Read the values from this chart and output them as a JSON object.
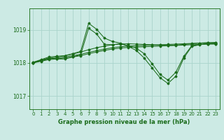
{
  "bg_color": "#cceae4",
  "grid_color": "#aad4cc",
  "line_color": "#1a6b1a",
  "title": "Graphe pression niveau de la mer (hPa)",
  "ylim": [
    1016.6,
    1019.65
  ],
  "yticks": [
    1017,
    1018,
    1019
  ],
  "xlim": [
    -0.5,
    23.5
  ],
  "xticks": [
    0,
    1,
    2,
    3,
    4,
    5,
    6,
    7,
    8,
    9,
    10,
    11,
    12,
    13,
    14,
    15,
    16,
    17,
    18,
    19,
    20,
    21,
    22,
    23
  ],
  "series": [
    {
      "x": [
        0,
        1,
        2,
        3,
        4,
        5,
        6,
        7,
        8,
        9,
        10,
        11,
        12,
        13,
        14,
        15,
        16,
        17,
        18,
        19,
        20,
        21,
        22,
        23
      ],
      "y": [
        1018.0,
        1018.05,
        1018.1,
        1018.12,
        1018.15,
        1018.18,
        1018.22,
        1018.28,
        1018.33,
        1018.38,
        1018.42,
        1018.45,
        1018.47,
        1018.48,
        1018.49,
        1018.5,
        1018.51,
        1018.52,
        1018.53,
        1018.54,
        1018.55,
        1018.56,
        1018.57,
        1018.57
      ]
    },
    {
      "x": [
        0,
        1,
        2,
        3,
        4,
        5,
        6,
        7,
        8,
        9,
        10,
        11,
        12,
        13,
        14,
        15,
        16,
        17,
        18,
        19,
        20,
        21,
        22,
        23
      ],
      "y": [
        1018.02,
        1018.07,
        1018.12,
        1018.15,
        1018.18,
        1018.22,
        1018.26,
        1018.32,
        1018.37,
        1018.42,
        1018.46,
        1018.49,
        1018.51,
        1018.52,
        1018.53,
        1018.54,
        1018.55,
        1018.56,
        1018.57,
        1018.58,
        1018.59,
        1018.6,
        1018.61,
        1018.61
      ]
    },
    {
      "x": [
        0,
        1,
        2,
        3,
        4,
        5,
        6,
        7,
        8,
        9,
        10,
        11,
        12,
        13,
        14,
        15,
        16,
        17,
        18,
        19,
        20,
        21,
        22,
        23
      ],
      "y": [
        1018.0,
        1018.08,
        1018.14,
        1018.18,
        1018.22,
        1018.27,
        1018.33,
        1018.4,
        1018.46,
        1018.51,
        1018.55,
        1018.57,
        1018.58,
        1018.57,
        1018.56,
        1018.55,
        1018.54,
        1018.53,
        1018.54,
        1018.56,
        1018.58,
        1018.6,
        1018.61,
        1018.62
      ]
    },
    {
      "x": [
        0,
        1,
        2,
        3,
        4,
        5,
        6,
        7,
        8,
        9,
        10,
        11,
        12,
        13,
        14,
        15,
        16,
        17,
        18,
        19,
        20,
        21,
        22,
        23
      ],
      "y": [
        1018.02,
        1018.1,
        1018.18,
        1018.2,
        1018.22,
        1018.28,
        1018.35,
        1019.2,
        1019.02,
        1018.75,
        1018.65,
        1018.6,
        1018.5,
        1018.38,
        1018.15,
        1017.85,
        1017.55,
        1017.38,
        1017.6,
        1018.15,
        1018.5,
        1018.55,
        1018.58,
        1018.6
      ]
    },
    {
      "x": [
        0,
        1,
        2,
        3,
        4,
        5,
        6,
        7,
        8,
        9,
        10,
        11,
        12,
        13,
        14,
        15,
        16,
        17,
        18,
        19,
        20,
        21,
        22,
        23
      ],
      "y": [
        1018.0,
        1018.08,
        1018.15,
        1018.12,
        1018.12,
        1018.18,
        1018.25,
        1019.05,
        1018.88,
        1018.56,
        1018.55,
        1018.58,
        1018.52,
        1018.45,
        1018.28,
        1017.98,
        1017.65,
        1017.48,
        1017.72,
        1018.2,
        1018.52,
        1018.56,
        1018.58,
        1018.58
      ]
    }
  ]
}
